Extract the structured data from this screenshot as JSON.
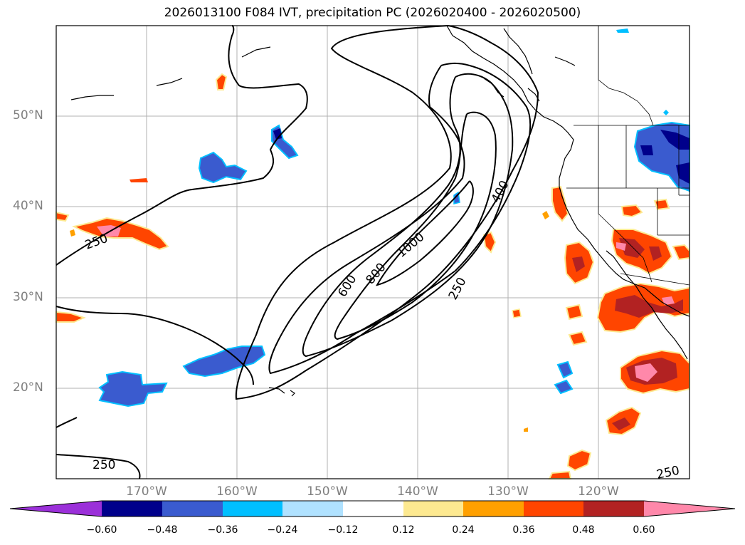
{
  "title": "2026013100 F084 IVT, precipitation PC (2026020400 - 2026020500)",
  "lat_labels": [
    "50°N",
    "40°N",
    "30°N",
    "20°N"
  ],
  "lon_labels": [
    "170°W",
    "160°W",
    "150°W",
    "140°W",
    "130°W",
    "120°W"
  ],
  "contour_labels": [
    "250",
    "600",
    "800",
    "1000",
    "400",
    "250",
    "250",
    "250"
  ],
  "colorbar": {
    "ticks": [
      "−0.60",
      "−0.48",
      "−0.36",
      "−0.24",
      "−0.12",
      "0.12",
      "0.24",
      "0.36",
      "0.48",
      "0.60"
    ],
    "colors": [
      "#9b30d9",
      "#00008b",
      "#3a5bcf",
      "#00bfff",
      "#b0e2ff",
      "#ffffff",
      "#fde990",
      "#ffa000",
      "#ff4500",
      "#b22222",
      "#ff88aa"
    ]
  }
}
